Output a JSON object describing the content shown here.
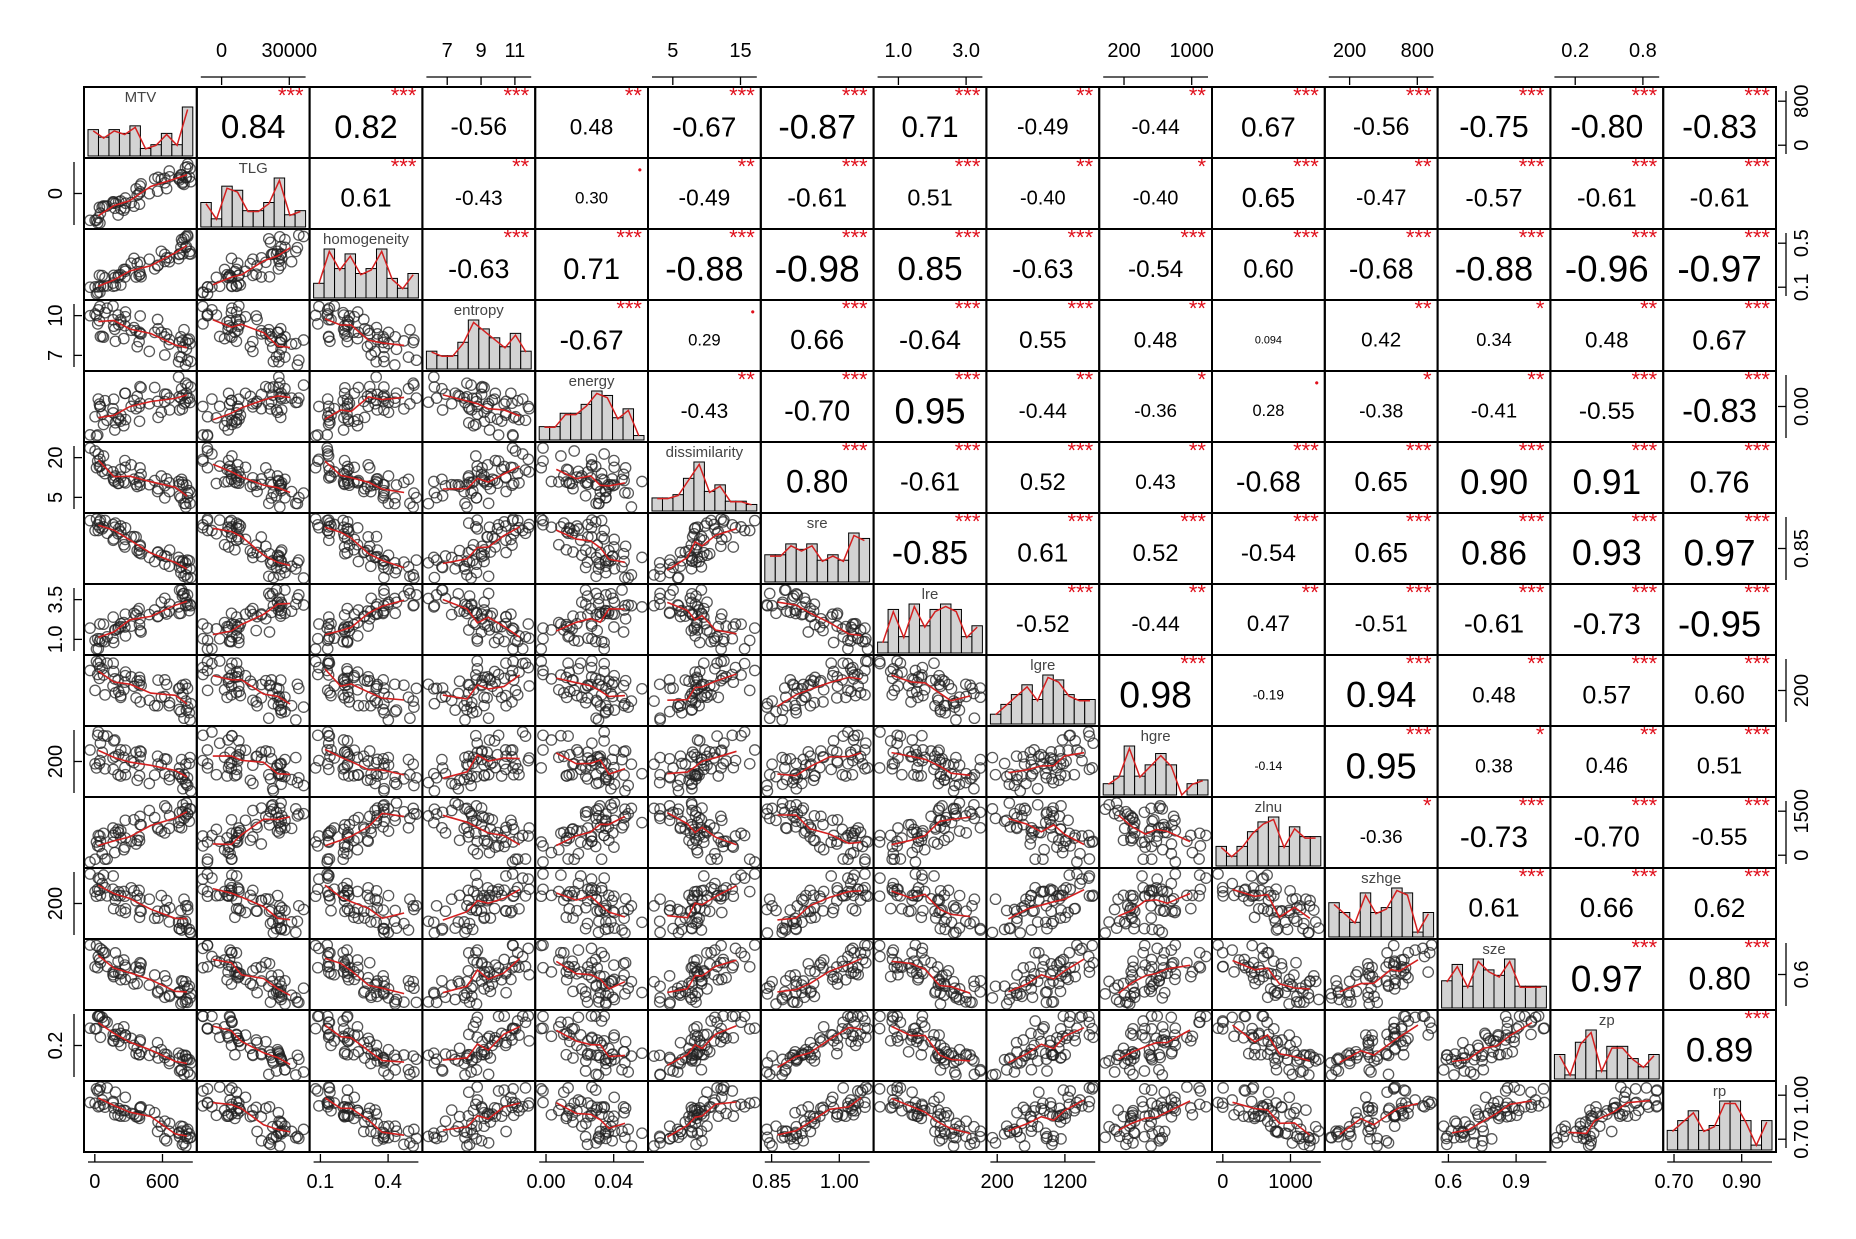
{
  "chart_data": {
    "type": "scatter",
    "title": "",
    "variables": [
      "MTV",
      "TLG",
      "homogeneity",
      "entropy",
      "energy",
      "dissimilarity",
      "sre",
      "lre",
      "lgre",
      "hgre",
      "zlnu",
      "szhge",
      "sze",
      "zp",
      "rp"
    ],
    "ranges": [
      [
        0,
        900
      ],
      [
        0,
        45000
      ],
      [
        0.05,
        0.6
      ],
      [
        6,
        11
      ],
      [
        0,
        0.05
      ],
      [
        1,
        25
      ],
      [
        0.8,
        1.0
      ],
      [
        0.8,
        4.3
      ],
      [
        100,
        1500
      ],
      [
        100,
        1200
      ],
      [
        0,
        1700
      ],
      [
        100,
        900
      ],
      [
        0.52,
        0.92
      ],
      [
        0.1,
        0.92
      ],
      [
        0.68,
        1.0
      ]
    ],
    "correlations": [
      [
        null,
        "0.84",
        "0.82",
        "-0.56",
        "0.48",
        "-0.67",
        "-0.87",
        "0.71",
        "-0.49",
        "-0.44",
        "0.67",
        "-0.56",
        "-0.75",
        "-0.80",
        "-0.83"
      ],
      [
        null,
        null,
        "0.61",
        "-0.43",
        "0.30",
        "-0.49",
        "-0.61",
        "0.51",
        "-0.40",
        "-0.40",
        "0.65",
        "-0.47",
        "-0.57",
        "-0.61",
        "-0.61"
      ],
      [
        null,
        null,
        null,
        "-0.63",
        "0.71",
        "-0.88",
        "-0.98",
        "0.85",
        "-0.63",
        "-0.54",
        "0.60",
        "-0.68",
        "-0.88",
        "-0.96",
        "-0.97"
      ],
      [
        null,
        null,
        null,
        null,
        "-0.67",
        "0.29",
        "0.66",
        "-0.64",
        "0.55",
        "0.48",
        "0.094",
        "0.42",
        "0.34",
        "0.48",
        "0.67"
      ],
      [
        null,
        null,
        null,
        null,
        null,
        "-0.43",
        "-0.70",
        "0.95",
        "-0.44",
        "-0.36",
        "0.28",
        "-0.38",
        "-0.41",
        "-0.55",
        "-0.83"
      ],
      [
        null,
        null,
        null,
        null,
        null,
        null,
        "0.80",
        "-0.61",
        "0.52",
        "0.43",
        "-0.68",
        "0.65",
        "0.90",
        "0.91",
        "0.76"
      ],
      [
        null,
        null,
        null,
        null,
        null,
        null,
        null,
        "-0.85",
        "0.61",
        "0.52",
        "-0.54",
        "0.65",
        "0.86",
        "0.93",
        "0.97"
      ],
      [
        null,
        null,
        null,
        null,
        null,
        null,
        null,
        null,
        "-0.52",
        "-0.44",
        "0.47",
        "-0.51",
        "-0.61",
        "-0.73",
        "-0.95"
      ],
      [
        null,
        null,
        null,
        null,
        null,
        null,
        null,
        null,
        null,
        "0.98",
        "-0.19",
        "0.94",
        "0.48",
        "0.57",
        "0.60"
      ],
      [
        null,
        null,
        null,
        null,
        null,
        null,
        null,
        null,
        null,
        null,
        "-0.14",
        "0.95",
        "0.38",
        "0.46",
        "0.51"
      ],
      [
        null,
        null,
        null,
        null,
        null,
        null,
        null,
        null,
        null,
        null,
        null,
        "-0.36",
        "-0.73",
        "-0.70",
        "-0.55"
      ],
      [
        null,
        null,
        null,
        null,
        null,
        null,
        null,
        null,
        null,
        null,
        null,
        null,
        "0.61",
        "0.66",
        "0.62"
      ],
      [
        null,
        null,
        null,
        null,
        null,
        null,
        null,
        null,
        null,
        null,
        null,
        null,
        null,
        "0.97",
        "0.80"
      ],
      [
        null,
        null,
        null,
        null,
        null,
        null,
        null,
        null,
        null,
        null,
        null,
        null,
        null,
        null,
        "0.89"
      ],
      [
        null,
        null,
        null,
        null,
        null,
        null,
        null,
        null,
        null,
        null,
        null,
        null,
        null,
        null,
        null
      ]
    ],
    "stars": [
      [
        null,
        "***",
        "***",
        "***",
        "**",
        "***",
        "***",
        "***",
        "**",
        "**",
        "***",
        "***",
        "***",
        "***",
        "***"
      ],
      [
        null,
        null,
        "***",
        "**",
        "•",
        "**",
        "***",
        "***",
        "**",
        "*",
        "***",
        "**",
        "***",
        "***",
        "***"
      ],
      [
        null,
        null,
        null,
        "***",
        "***",
        "***",
        "***",
        "***",
        "***",
        "***",
        "***",
        "***",
        "***",
        "***",
        "***"
      ],
      [
        null,
        null,
        null,
        null,
        "***",
        "•",
        "***",
        "***",
        "***",
        "**",
        "",
        "**",
        "*",
        "**",
        "***"
      ],
      [
        null,
        null,
        null,
        null,
        null,
        "**",
        "***",
        "***",
        "**",
        "*",
        "•",
        "*",
        "**",
        "***",
        "***"
      ],
      [
        null,
        null,
        null,
        null,
        null,
        null,
        "***",
        "***",
        "***",
        "**",
        "***",
        "***",
        "***",
        "***",
        "***"
      ],
      [
        null,
        null,
        null,
        null,
        null,
        null,
        null,
        "***",
        "***",
        "***",
        "***",
        "***",
        "***",
        "***",
        "***"
      ],
      [
        null,
        null,
        null,
        null,
        null,
        null,
        null,
        null,
        "***",
        "**",
        "**",
        "***",
        "***",
        "***",
        "***"
      ],
      [
        null,
        null,
        null,
        null,
        null,
        null,
        null,
        null,
        null,
        "***",
        "",
        "***",
        "**",
        "***",
        "***"
      ],
      [
        null,
        null,
        null,
        null,
        null,
        null,
        null,
        null,
        null,
        null,
        "",
        "***",
        "*",
        "**",
        "***"
      ],
      [
        null,
        null,
        null,
        null,
        null,
        null,
        null,
        null,
        null,
        null,
        null,
        "*",
        "***",
        "***",
        "***"
      ],
      [
        null,
        null,
        null,
        null,
        null,
        null,
        null,
        null,
        null,
        null,
        null,
        null,
        "***",
        "***",
        "***"
      ],
      [
        null,
        null,
        null,
        null,
        null,
        null,
        null,
        null,
        null,
        null,
        null,
        null,
        null,
        "***",
        "***"
      ],
      [
        null,
        null,
        null,
        null,
        null,
        null,
        null,
        null,
        null,
        null,
        null,
        null,
        null,
        null,
        "***"
      ],
      [
        null,
        null,
        null,
        null,
        null,
        null,
        null,
        null,
        null,
        null,
        null,
        null,
        null,
        null,
        null
      ]
    ],
    "top_axis_ticks": [
      {
        "col": 1,
        "labels": [
          "0",
          "30000"
        ],
        "values": [
          0,
          30000
        ]
      },
      {
        "col": 3,
        "labels": [
          "7",
          "9",
          "11"
        ],
        "values": [
          7,
          9,
          11
        ]
      },
      {
        "col": 5,
        "labels": [
          "5",
          "15"
        ],
        "values": [
          5,
          15
        ]
      },
      {
        "col": 7,
        "labels": [
          "1.0",
          "3.0"
        ],
        "values": [
          1.0,
          3.0
        ]
      },
      {
        "col": 9,
        "labels": [
          "200",
          "1000"
        ],
        "values": [
          200,
          1000
        ]
      },
      {
        "col": 11,
        "labels": [
          "200",
          "800"
        ],
        "values": [
          200,
          800
        ]
      },
      {
        "col": 13,
        "labels": [
          "0.2",
          "0.8"
        ],
        "values": [
          0.2,
          0.8
        ]
      }
    ],
    "bottom_axis_ticks": [
      {
        "col": 0,
        "labels": [
          "0",
          "600"
        ],
        "values": [
          0,
          600
        ]
      },
      {
        "col": 2,
        "labels": [
          "0.1",
          "0.4"
        ],
        "values": [
          0.1,
          0.4
        ]
      },
      {
        "col": 4,
        "labels": [
          "0.00",
          "0.04"
        ],
        "values": [
          0,
          0.04
        ]
      },
      {
        "col": 6,
        "labels": [
          "0.85",
          "1.00"
        ],
        "values": [
          0.85,
          1.0
        ]
      },
      {
        "col": 8,
        "labels": [
          "200",
          "1200"
        ],
        "values": [
          200,
          1200
        ]
      },
      {
        "col": 10,
        "labels": [
          "0",
          "1000"
        ],
        "values": [
          0,
          1000
        ]
      },
      {
        "col": 12,
        "labels": [
          "0.6",
          "0.9"
        ],
        "values": [
          0.6,
          0.9
        ]
      },
      {
        "col": 14,
        "labels": [
          "0.70",
          "0.90"
        ],
        "values": [
          0.7,
          0.9
        ]
      }
    ],
    "left_axis_ticks": [
      {
        "row": 1,
        "labels": [
          "0"
        ],
        "values": [
          0
        ]
      },
      {
        "row": 3,
        "labels": [
          "7",
          "10"
        ],
        "values": [
          7,
          10
        ]
      },
      {
        "row": 5,
        "labels": [
          "5",
          "20"
        ],
        "values": [
          5,
          20
        ]
      },
      {
        "row": 7,
        "labels": [
          "1.0",
          "3.5"
        ],
        "values": [
          1.0,
          3.5
        ]
      },
      {
        "row": 9,
        "labels": [
          "200"
        ],
        "values": [
          200
        ]
      },
      {
        "row": 11,
        "labels": [
          "200"
        ],
        "values": [
          200
        ]
      },
      {
        "row": 13,
        "labels": [
          "0.2"
        ],
        "values": [
          0.2
        ]
      }
    ],
    "right_axis_ticks": [
      {
        "row": 0,
        "labels": [
          "0",
          "800"
        ],
        "values": [
          0,
          800
        ]
      },
      {
        "row": 2,
        "labels": [
          "0.1",
          "0.5"
        ],
        "values": [
          0.1,
          0.5
        ]
      },
      {
        "row": 4,
        "labels": [
          "0.00"
        ],
        "values": [
          0
        ]
      },
      {
        "row": 6,
        "labels": [
          "0.85"
        ],
        "values": [
          0.85
        ]
      },
      {
        "row": 8,
        "labels": [
          "200"
        ],
        "values": [
          200
        ]
      },
      {
        "row": 10,
        "labels": [
          "0",
          "1500"
        ],
        "values": [
          0,
          1500
        ]
      },
      {
        "row": 12,
        "labels": [
          "0.6"
        ],
        "values": [
          0.6
        ]
      },
      {
        "row": 14,
        "labels": [
          "0.70",
          "1.00"
        ],
        "values": [
          0.7,
          1.0
        ]
      }
    ],
    "colors": {
      "stars": "#e0101c",
      "smooth": "#d42020",
      "hist_fill": "#d3d3d3",
      "points": "#222222"
    }
  }
}
